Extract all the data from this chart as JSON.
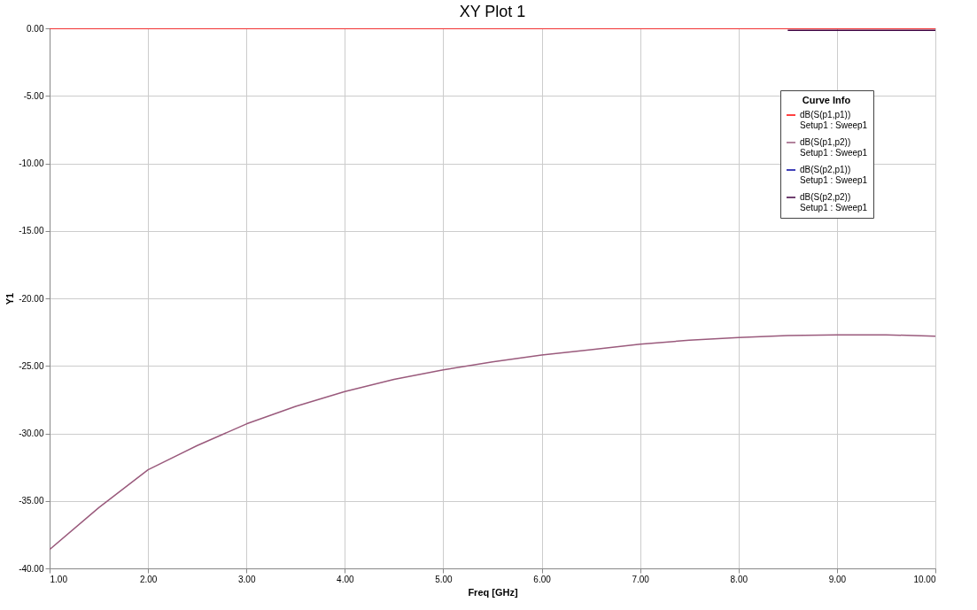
{
  "chart_data": {
    "type": "line",
    "title": "XY Plot 1",
    "xlabel": "Freq [GHz]",
    "ylabel": "Y1",
    "legend_title": "Curve Info",
    "x": [
      1,
      1.5,
      2,
      2.5,
      3,
      3.5,
      4,
      4.5,
      5,
      5.5,
      6,
      6.5,
      7,
      7.5,
      8,
      8.5,
      9,
      9.5,
      10
    ],
    "series": [
      {
        "name": "dB(S(p1,p1))\nSetup1 : Sweep1",
        "color": "#ff0000",
        "values": [
          0,
          0,
          0,
          0,
          0,
          0,
          0,
          0,
          0,
          0,
          0,
          0,
          0,
          0,
          0,
          0,
          0,
          0,
          0
        ]
      },
      {
        "name": "dB(S(p1,p2))\nSetup1 : Sweep1",
        "color": "#9a5a7c",
        "values": [
          -38.6,
          -35.5,
          -32.7,
          -30.9,
          -29.3,
          -28.0,
          -26.9,
          -26.0,
          -25.3,
          -24.7,
          -24.2,
          -23.8,
          -23.4,
          -23.1,
          -22.9,
          -22.75,
          -22.7,
          -22.7,
          -22.8
        ]
      },
      {
        "name": "dB(S(p2,p1))\nSetup1 : Sweep1",
        "color": "#0000a0",
        "values": [
          null,
          null,
          null,
          null,
          null,
          null,
          null,
          null,
          null,
          null,
          null,
          null,
          null,
          null,
          null,
          null,
          null,
          null,
          null
        ]
      },
      {
        "name": "dB(S(p2,p2))\nSetup1 : Sweep1",
        "color": "#400040",
        "values": [
          null,
          null,
          null,
          null,
          null,
          null,
          null,
          null,
          null,
          null,
          null,
          null,
          null,
          null,
          null,
          -0.15,
          -0.15,
          -0.15,
          -0.15
        ]
      }
    ],
    "xlim": [
      1,
      10
    ],
    "ylim": [
      -40,
      0
    ],
    "xticks": [
      {
        "value": 1,
        "label": "1.00"
      },
      {
        "value": 2,
        "label": "2.00"
      },
      {
        "value": 3,
        "label": "3.00"
      },
      {
        "value": 4,
        "label": "4.00"
      },
      {
        "value": 5,
        "label": "5.00"
      },
      {
        "value": 6,
        "label": "6.00"
      },
      {
        "value": 7,
        "label": "7.00"
      },
      {
        "value": 8,
        "label": "8.00"
      },
      {
        "value": 9,
        "label": "9.00"
      },
      {
        "value": 10,
        "label": "10.00"
      }
    ],
    "yticks": [
      {
        "value": -40,
        "label": "-40.00"
      },
      {
        "value": -35,
        "label": "-35.00"
      },
      {
        "value": -30,
        "label": "-30.00"
      },
      {
        "value": -25,
        "label": "-25.00"
      },
      {
        "value": -20,
        "label": "-20.00"
      },
      {
        "value": -15,
        "label": "-15.00"
      },
      {
        "value": -10,
        "label": "-10.00"
      },
      {
        "value": -5,
        "label": "-5.00"
      },
      {
        "value": 0,
        "label": "0.00"
      }
    ],
    "grid": true,
    "legend": "top right",
    "marker": "none",
    "line_style": "solid"
  }
}
